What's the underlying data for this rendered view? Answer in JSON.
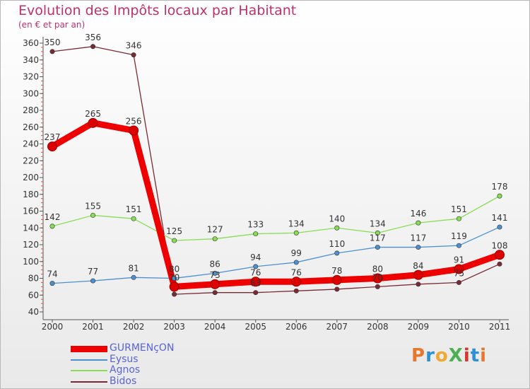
{
  "chart_data": {
    "type": "line",
    "title": "Evolution des Impôts locaux par Habitant",
    "subtitle": "(en € et par an)",
    "x": [
      "2000",
      "2001",
      "2002",
      "2003",
      "2004",
      "2005",
      "2006",
      "2007",
      "2008",
      "2009",
      "2010",
      "2011"
    ],
    "ylim": [
      40,
      360
    ],
    "yticks": [
      40,
      60,
      80,
      100,
      120,
      140,
      160,
      180,
      200,
      220,
      240,
      260,
      280,
      300,
      320,
      340,
      360
    ],
    "grid": false,
    "legend_position": "bottom-left",
    "series": [
      {
        "name": "GURMENçON",
        "color": "#ee0000",
        "values": [
          237,
          265,
          256,
          70,
          73,
          76,
          76,
          78,
          80,
          84,
          91,
          108
        ],
        "labels": [
          "237",
          "265",
          "256",
          "70",
          "73",
          "76",
          "76",
          "78",
          "80",
          "84",
          "91",
          "108"
        ]
      },
      {
        "name": "Eysus",
        "color": "#4d8fcf",
        "values": [
          74,
          77,
          81,
          80,
          86,
          94,
          99,
          110,
          117,
          117,
          119,
          141
        ],
        "labels": [
          "74",
          "77",
          "81",
          "80",
          "86",
          "94",
          "99",
          "110",
          "117",
          "117",
          "119",
          "141"
        ]
      },
      {
        "name": "Agnos",
        "color": "#88dd55",
        "values": [
          142,
          155,
          151,
          125,
          127,
          133,
          134,
          140,
          134,
          146,
          151,
          178
        ],
        "labels": [
          "142",
          "155",
          "151",
          "125",
          "127",
          "133",
          "134",
          "140",
          "134",
          "146",
          "151",
          "178"
        ]
      },
      {
        "name": "Bidos",
        "color": "#7a2a35",
        "values": [
          350,
          356,
          346,
          61,
          63,
          63,
          65,
          67,
          70,
          73,
          75,
          97
        ],
        "labels": [
          "350",
          "356",
          "346",
          "",
          "",
          "63",
          "",
          "",
          "70",
          "",
          "75",
          ""
        ]
      }
    ]
  },
  "logo": {
    "text": "ProXiti",
    "colors": [
      "#e8772e",
      "#2d8fd6",
      "#f0a830",
      "#4caf50",
      "#d23a2e",
      "#2d8fd6",
      "#e8772e"
    ]
  }
}
